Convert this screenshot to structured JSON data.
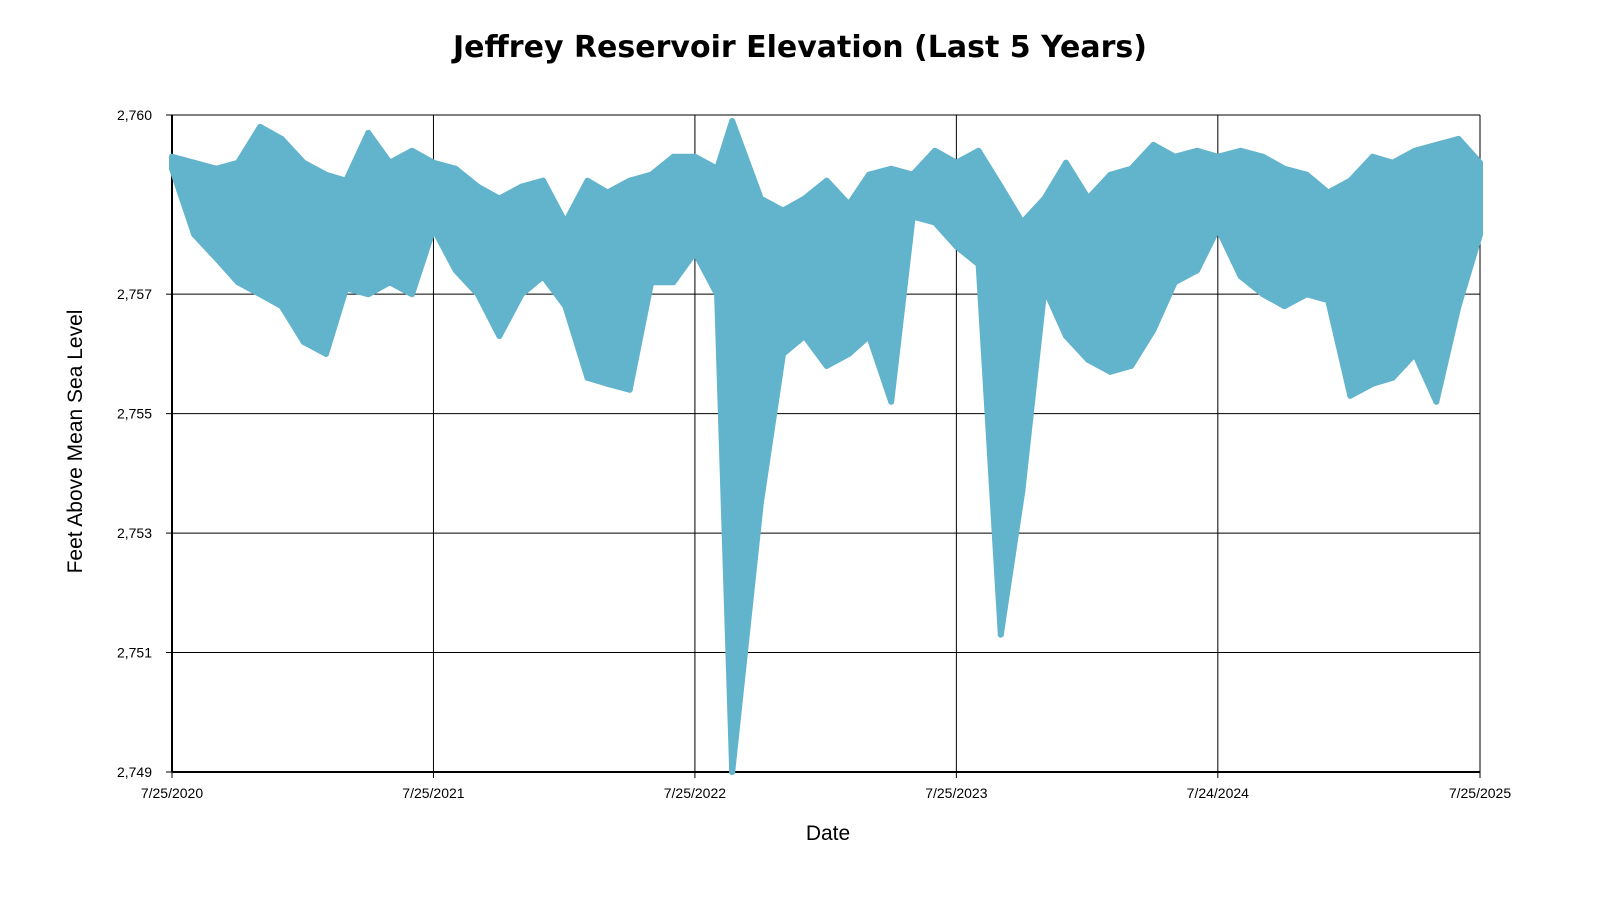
{
  "chart_data": {
    "type": "area",
    "title": "Jeffrey Reservoir Elevation (Last 5 Years)",
    "xlabel": "Date",
    "ylabel": "Feet Above Mean Sea Level",
    "ylim": [
      2749,
      2760
    ],
    "y_ticks": [
      {
        "value": 2760,
        "label": "2,760"
      },
      {
        "value": 2757,
        "label": "2,757"
      },
      {
        "value": 2755,
        "label": "2,755"
      },
      {
        "value": 2753,
        "label": "2,753"
      },
      {
        "value": 2751,
        "label": "2,751"
      },
      {
        "value": 2749,
        "label": "2,749"
      }
    ],
    "x_ticks": [
      "7/25/2020",
      "7/25/2021",
      "7/25/2022",
      "7/25/2023",
      "7/24/2024",
      "7/25/2025"
    ],
    "grid": true,
    "color": "#62b3cc",
    "series": [
      {
        "x": [
          "2020-07-25",
          "2020-08-25",
          "2020-09-25",
          "2020-10-25",
          "2020-11-25",
          "2020-12-25",
          "2021-01-25",
          "2021-02-25",
          "2021-03-25",
          "2021-04-25",
          "2021-05-25",
          "2021-06-25",
          "2021-07-25",
          "2021-08-25",
          "2021-09-25",
          "2021-10-25",
          "2021-11-25",
          "2021-12-25",
          "2022-01-25",
          "2022-02-25",
          "2022-03-25",
          "2022-04-25",
          "2022-05-25",
          "2022-06-25",
          "2022-07-25",
          "2022-08-25",
          "2022-09-15",
          "2022-10-25",
          "2022-11-25",
          "2022-12-25",
          "2023-01-25",
          "2023-02-25",
          "2023-03-25",
          "2023-04-25",
          "2023-05-25",
          "2023-06-25",
          "2023-07-25",
          "2023-08-25",
          "2023-09-25",
          "2023-10-25",
          "2023-11-25",
          "2023-12-25",
          "2024-01-25",
          "2024-02-25",
          "2024-03-25",
          "2024-04-25",
          "2024-05-25",
          "2024-06-25",
          "2024-07-24",
          "2024-08-25",
          "2024-09-25",
          "2024-10-25",
          "2024-11-25",
          "2024-12-25",
          "2025-01-25",
          "2025-02-25",
          "2025-03-25",
          "2025-04-25",
          "2025-05-25",
          "2025-06-25",
          "2025-07-25"
        ],
        "high": [
          2759.3,
          2759.2,
          2759.1,
          2759.2,
          2759.8,
          2759.6,
          2759.2,
          2759.0,
          2758.9,
          2759.7,
          2759.2,
          2759.4,
          2759.2,
          2759.1,
          2758.8,
          2758.6,
          2758.8,
          2758.9,
          2758.2,
          2758.9,
          2758.7,
          2758.9,
          2759.0,
          2759.3,
          2759.3,
          2759.1,
          2759.9,
          2758.6,
          2758.4,
          2758.6,
          2758.9,
          2758.5,
          2759.0,
          2759.1,
          2759.0,
          2759.4,
          2759.2,
          2759.4,
          2758.8,
          2758.2,
          2758.6,
          2759.2,
          2758.6,
          2759.0,
          2759.1,
          2759.5,
          2759.3,
          2759.4,
          2759.3,
          2759.4,
          2759.3,
          2759.1,
          2759.0,
          2758.7,
          2758.9,
          2759.3,
          2759.2,
          2759.4,
          2759.5,
          2759.6,
          2759.2
        ],
        "low": [
          2759.1,
          2758.0,
          2757.6,
          2757.2,
          2757.0,
          2756.8,
          2756.2,
          2756.0,
          2757.1,
          2757.0,
          2757.2,
          2757.0,
          2758.1,
          2757.4,
          2757.0,
          2756.3,
          2757.0,
          2757.3,
          2756.8,
          2755.6,
          2755.5,
          2755.4,
          2757.2,
          2757.2,
          2757.7,
          2757.0,
          2749.0,
          2753.5,
          2756.0,
          2756.3,
          2755.8,
          2756.0,
          2756.3,
          2755.2,
          2758.3,
          2758.2,
          2757.8,
          2757.5,
          2751.3,
          2753.7,
          2757.1,
          2756.3,
          2755.9,
          2755.7,
          2755.8,
          2756.4,
          2757.2,
          2757.4,
          2758.1,
          2757.3,
          2757.0,
          2756.8,
          2757.0,
          2756.9,
          2755.3,
          2755.5,
          2755.6,
          2756.0,
          2755.2,
          2756.8,
          2758.0
        ]
      }
    ]
  }
}
